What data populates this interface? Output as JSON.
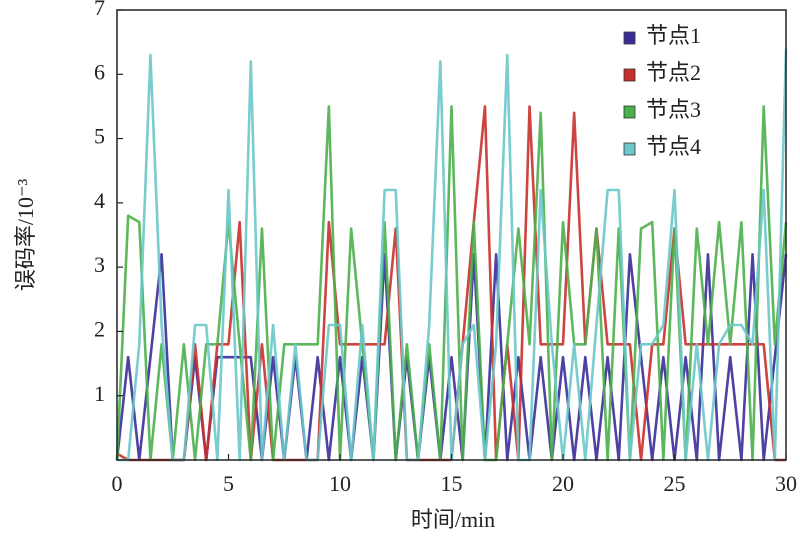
{
  "chart_data": {
    "type": "line",
    "xlabel": "时间/min",
    "ylabel": "误码率/10⁻³",
    "x": [
      0,
      0.5,
      1,
      1.5,
      2,
      2.5,
      3,
      3.5,
      4,
      4.5,
      5,
      5.5,
      6,
      6.5,
      7,
      7.5,
      8,
      8.5,
      9,
      9.5,
      10,
      10.5,
      11,
      11.5,
      12,
      12.5,
      13,
      13.5,
      14,
      14.5,
      15,
      15.5,
      16,
      16.5,
      17,
      17.5,
      18,
      18.5,
      19,
      19.5,
      20,
      20.5,
      21,
      21.5,
      22,
      22.5,
      23,
      23.5,
      24,
      24.5,
      25,
      25.5,
      26,
      26.5,
      27,
      27.5,
      28,
      28.5,
      29,
      29.5,
      30
    ],
    "series": [
      {
        "name": "节点1",
        "color": "#3a2d99",
        "values": [
          0,
          1.6,
          0,
          1.6,
          3.2,
          0,
          0,
          1.6,
          0,
          1.6,
          1.6,
          1.6,
          1.6,
          0,
          1.6,
          0,
          1.6,
          0,
          1.6,
          0,
          1.6,
          0,
          1.6,
          0,
          3.2,
          0,
          1.6,
          0,
          1.6,
          0,
          1.6,
          0,
          3.2,
          0,
          3.2,
          0,
          1.6,
          0,
          1.6,
          0,
          1.6,
          0,
          1.6,
          0,
          1.6,
          0,
          3.2,
          1.6,
          0,
          1.6,
          0,
          1.6,
          0,
          3.2,
          0,
          1.6,
          0,
          3.2,
          0,
          1.6,
          3.2
        ]
      },
      {
        "name": "节点2",
        "color": "#c9302c",
        "values": [
          0.1,
          0,
          0,
          0,
          0,
          0,
          0,
          1.8,
          0,
          1.8,
          1.8,
          3.7,
          0,
          1.8,
          0,
          0,
          0,
          0,
          0,
          3.7,
          1.8,
          1.8,
          1.8,
          1.8,
          1.8,
          3.6,
          0,
          0,
          0,
          0,
          0,
          1.8,
          3.7,
          5.5,
          0,
          1.8,
          0,
          5.5,
          1.8,
          1.8,
          1.8,
          5.4,
          1.8,
          3.6,
          1.8,
          1.8,
          1.8,
          0,
          1.8,
          1.8,
          3.6,
          1.8,
          1.8,
          1.8,
          1.8,
          1.8,
          1.8,
          1.8,
          1.8,
          0,
          0
        ]
      },
      {
        "name": "节点3",
        "color": "#4bb04b",
        "values": [
          0,
          3.8,
          3.7,
          0,
          1.8,
          0,
          1.8,
          0,
          1.8,
          1.8,
          3.7,
          1.8,
          0,
          3.6,
          0,
          1.8,
          1.8,
          1.8,
          1.8,
          5.5,
          0,
          3.6,
          1.8,
          0,
          3.7,
          0,
          1.8,
          0,
          1.8,
          0,
          5.5,
          0,
          3.7,
          0,
          0,
          1.8,
          3.6,
          1.8,
          5.4,
          0,
          3.7,
          1.8,
          1.8,
          3.6,
          0,
          3.6,
          0,
          3.6,
          3.7,
          0,
          3.6,
          0,
          3.6,
          1.8,
          3.7,
          1.8,
          3.7,
          0,
          5.5,
          1.8,
          3.7
        ]
      },
      {
        "name": "节点4",
        "color": "#6cc8ca",
        "values": [
          0,
          0,
          1.8,
          6.3,
          2.1,
          0,
          0,
          2.1,
          2.1,
          0,
          4.2,
          0,
          6.2,
          0,
          2.1,
          0,
          1.8,
          0,
          0,
          2.1,
          2.1,
          0,
          2.1,
          0,
          4.2,
          4.2,
          0,
          0,
          2.1,
          6.2,
          0,
          1.8,
          2.1,
          0,
          1.8,
          6.3,
          0,
          0,
          4.2,
          1.8,
          0,
          1.8,
          0,
          2.1,
          4.2,
          4.2,
          0,
          1.8,
          1.8,
          2.1,
          4.2,
          0,
          1.8,
          0,
          1.8,
          2.1,
          2.1,
          1.8,
          4.2,
          0,
          6.4
        ]
      }
    ],
    "xlim": [
      0,
      30
    ],
    "xticks": [
      0,
      5,
      10,
      15,
      20,
      25,
      30
    ],
    "ylim": [
      0,
      7
    ],
    "yticks": [
      1,
      2,
      3,
      4,
      5,
      6,
      7
    ]
  }
}
